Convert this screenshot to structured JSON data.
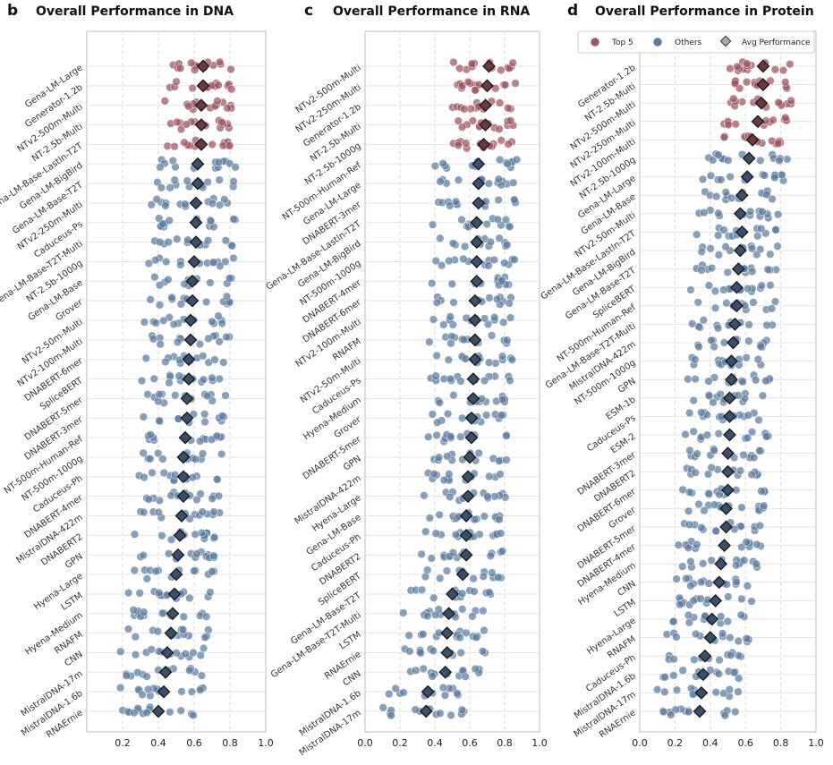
{
  "colors": {
    "top5": "#9b5560",
    "others": "#5c7ba0",
    "avg_top": "#6b3a3f",
    "avg_other": "#3a4f6a",
    "avg_legend": "#aaaaaa",
    "grid": "#dddddd",
    "frame": "#bbbbbb"
  },
  "legend": {
    "top5": "Top 5",
    "others": "Others",
    "avg": "Avg Performance"
  },
  "chart_data": [
    {
      "type": "scatter",
      "letter": "b",
      "title": "Overall Performance in DNA",
      "xlim": [
        0,
        1.0
      ],
      "xticks": [
        "0.2",
        "0.4",
        "0.6",
        "0.8",
        "1.0"
      ],
      "xtick_values": [
        0.2,
        0.4,
        0.6,
        0.8,
        1.0
      ],
      "models": [
        "Gena-LM-Large",
        "Generator-1.2b",
        "NTv2-500m-Multi",
        "NT-2.5b-Multi",
        "Gena-LM-Base-Lastln-T2T",
        "Gena-LM-BigBird",
        "Gena-LM-Base-T2T",
        "NTv2-250m-Multi",
        "Caduceus-Ps",
        "Gena-LM-Base-T2T-Multi",
        "NT-2.5b-1000g",
        "Gena-LM-Base",
        "Grover",
        "NTv2-50m-Multi",
        "NTv2-100m-Multi",
        "DNABERT-6mer",
        "SpliceBERT",
        "DNABERT-5mer",
        "DNABERT-3mer",
        "NT-500m-Human-Ref",
        "NT-500m-1000g",
        "Caduceus-Ph",
        "DNABERT-4mer",
        "MistralDNA-422m",
        "DNABERT2",
        "GPN",
        "Hyena-Large",
        "LSTM",
        "Hyena-Medium",
        "RNAFM",
        "CNN",
        "MistralDNA-17m",
        "MistralDNA-1.6b",
        "RNAErnie"
      ],
      "avg": [
        0.65,
        0.65,
        0.64,
        0.64,
        0.64,
        0.62,
        0.62,
        0.61,
        0.61,
        0.61,
        0.6,
        0.59,
        0.59,
        0.58,
        0.58,
        0.57,
        0.57,
        0.56,
        0.56,
        0.55,
        0.54,
        0.54,
        0.54,
        0.53,
        0.52,
        0.51,
        0.5,
        0.49,
        0.48,
        0.47,
        0.45,
        0.44,
        0.43,
        0.4
      ]
    },
    {
      "type": "scatter",
      "letter": "c",
      "title": "Overall Performance in RNA",
      "xlim": [
        0,
        1.0
      ],
      "xticks": [
        "0.0",
        "0.2",
        "0.4",
        "0.6",
        "0.8",
        "1.0"
      ],
      "xtick_values": [
        0.0,
        0.2,
        0.4,
        0.6,
        0.8,
        1.0
      ],
      "models": [
        "NTv2-500m-Multi",
        "NTv2-250m-Multi",
        "Generator-1.2b",
        "NT-2.5b-Multi",
        "NT-2.5b-1000g",
        "NT-500m-Human-Ref",
        "Gena-LM-Large",
        "DNABERT-3mer",
        "Gena-LM-Base-Lastln-T2T",
        "Gena-LM-BigBird",
        "NT-500m-1000g",
        "DNABERT-4mer",
        "DNABERT-6mer",
        "NTv2-100m-Multi",
        "RNAFM",
        "NTv2-50m-Multi",
        "Caduceus-Ps",
        "Hyena-Medium",
        "Grover",
        "DNABERT-5mer",
        "GPN",
        "MistralDNA-422m",
        "Hyena-Large",
        "Gena-LM-Base",
        "Caduceus-Ph",
        "DNABERT2",
        "SpliceBERT",
        "Gena-LM-Base-T2T",
        "Gena-LM-Base-T2T-Multi",
        "LSTM",
        "RNAErnie",
        "CNN",
        "MistralDNA-1.6b",
        "MistralDNA-17m"
      ],
      "avg": [
        0.71,
        0.7,
        0.69,
        0.69,
        0.68,
        0.65,
        0.65,
        0.65,
        0.64,
        0.64,
        0.64,
        0.64,
        0.63,
        0.63,
        0.63,
        0.63,
        0.62,
        0.62,
        0.61,
        0.61,
        0.6,
        0.59,
        0.59,
        0.58,
        0.58,
        0.58,
        0.56,
        0.5,
        0.48,
        0.47,
        0.47,
        0.46,
        0.36,
        0.35
      ]
    },
    {
      "type": "scatter",
      "letter": "d",
      "title": "Overall Performance in Protein",
      "xlim": [
        0,
        1.0
      ],
      "xticks": [
        "0.0",
        "0.2",
        "0.4",
        "0.6",
        "0.8",
        "1.0"
      ],
      "xtick_values": [
        0.0,
        0.2,
        0.4,
        0.6,
        0.8,
        1.0
      ],
      "models": [
        "Generator-1.2b",
        "NT-2.5b-Multi",
        "NTv2-500m-Multi",
        "NTv2-250m-Multi",
        "NTv2-100m-Multi",
        "NT-2.5b-1000g",
        "Gena-LM-Large",
        "Gena-LM-Base",
        "NTv2-50m-Multi",
        "Gena-LM-Base-Lastln-T2T",
        "Gena-LM-BigBird",
        "Gena-LM-Base-T2T",
        "SpliceBERT",
        "NT-500m-Human-Ref",
        "Gena-LM-Base-T2T-Multi",
        "MistralDNA-422m",
        "NT-500m-1000g",
        "GPN",
        "ESM-1b",
        "Caduceus-Ps",
        "ESM-2",
        "DNABERT-3mer",
        "DNABERT2",
        "DNABERT-6mer",
        "Grover",
        "DNABERT-5mer",
        "DNABERT-4mer",
        "Hyena-Medium",
        "CNN",
        "LSTM",
        "Hyena-Large",
        "RNAFM",
        "Caduceus-Ph",
        "MistralDNA-1.6b",
        "MistralDNA-17m",
        "RNAErnie"
      ],
      "avg": [
        0.7,
        0.7,
        0.69,
        0.67,
        0.64,
        0.62,
        0.61,
        0.58,
        0.57,
        0.58,
        0.57,
        0.56,
        0.55,
        0.55,
        0.54,
        0.53,
        0.52,
        0.52,
        0.51,
        0.51,
        0.51,
        0.5,
        0.5,
        0.5,
        0.49,
        0.49,
        0.48,
        0.46,
        0.45,
        0.43,
        0.41,
        0.4,
        0.37,
        0.36,
        0.35,
        0.34
      ]
    }
  ]
}
